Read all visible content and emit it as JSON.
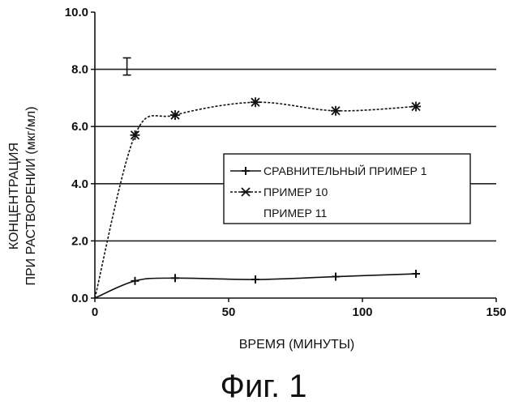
{
  "figure_caption": "Фиг. 1",
  "chart_data": {
    "type": "line",
    "title": "",
    "xlabel": "ВРЕМЯ (МИНУТЫ)",
    "ylabel_lines": [
      "КОНЦЕНТРАЦИЯ",
      "ПРИ РАСТВОРЕНИИ (мкг/мл)"
    ],
    "xlim": [
      0,
      150
    ],
    "ylim": [
      0,
      10
    ],
    "x_ticks": [
      0,
      50,
      100,
      150
    ],
    "x_tick_labels": [
      "0",
      "50",
      "100",
      "150"
    ],
    "y_ticks": [
      0,
      2,
      4,
      6,
      8,
      10
    ],
    "y_tick_labels": [
      "0.0",
      "2.0",
      "4.0",
      "6.0",
      "8.0",
      "10.0"
    ],
    "grid": "horizontal",
    "legend_position": "right",
    "series": [
      {
        "name": "СРАВНИТЕЛЬНЫЙ ПРИМЕР 1",
        "marker": "plus",
        "style": "solid",
        "x": [
          0,
          15,
          30,
          60,
          90,
          120
        ],
        "y": [
          0.0,
          0.6,
          0.7,
          0.65,
          0.75,
          0.85
        ]
      },
      {
        "name": "ПРИМЕР 10",
        "marker": "asterisk",
        "style": "dashed",
        "x": [
          0,
          15,
          30,
          60,
          90,
          120
        ],
        "y": [
          0.0,
          5.7,
          6.4,
          6.85,
          6.55,
          6.7
        ]
      },
      {
        "name": "ПРИМЕР 11",
        "marker": "errorbar",
        "style": "none",
        "x": [
          12
        ],
        "y": [
          8.1
        ],
        "error": [
          0.3
        ]
      }
    ]
  }
}
